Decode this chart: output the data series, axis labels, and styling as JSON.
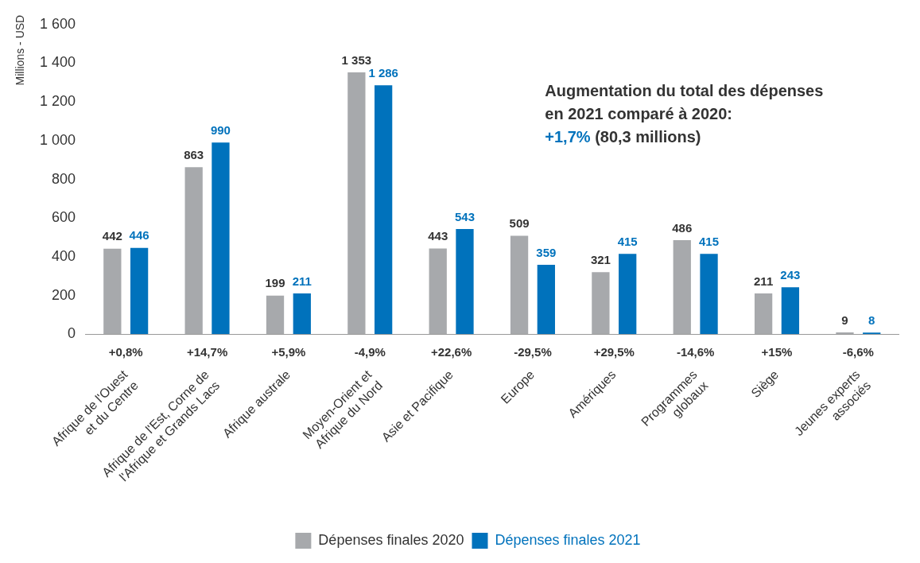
{
  "chart_data": {
    "type": "bar",
    "ylabel": "Millions - USD",
    "categories": [
      "Afrique de l'Ouest\net du Centre",
      "Afrique de l'Est, Corne de\nl'Afrique et Grands Lacs",
      "Afrique australe",
      "Moyen-Orient et\nAfrique du Nord",
      "Asie et Pacifique",
      "Europe",
      "Amériques",
      "Programmes\nglobaux",
      "Siège",
      "Jeunes experts\nassociés"
    ],
    "series": [
      {
        "name": "Dépenses finales 2020",
        "color": "#a7a9ac",
        "values": [
          442,
          863,
          199,
          1353,
          443,
          509,
          321,
          486,
          211,
          9
        ],
        "value_labels": [
          "442",
          "863",
          "199",
          "1 353",
          "443",
          "509",
          "321",
          "486",
          "211",
          "9"
        ]
      },
      {
        "name": "Dépenses finales 2021",
        "color": "#0072bc",
        "values": [
          446,
          990,
          211,
          1286,
          543,
          359,
          415,
          415,
          243,
          8
        ],
        "value_labels": [
          "446",
          "990",
          "211",
          "1 286",
          "543",
          "359",
          "415",
          "415",
          "243",
          "8"
        ]
      }
    ],
    "ylim": [
      0,
      1600
    ],
    "yticks": [
      0,
      200,
      400,
      600,
      800,
      {
        "value": 1000,
        "label": "1 000"
      },
      {
        "value": 1200,
        "label": "1 200"
      },
      {
        "value": 1400,
        "label": "1 400"
      },
      {
        "value": 1600,
        "label": "1 600"
      }
    ],
    "grid": false,
    "legend": "bottom",
    "annotations": [
      "+0,8%",
      "+14,7%",
      "+5,9%",
      "-4,9%",
      "+22,6%",
      "-29,5%",
      "+29,5%",
      "-14,6%",
      "+15%",
      "-6,6%",
      "Augmentation du total des dépenses\nen 2021 comparé à 2020:\n+1,7% (80,3 millions)"
    ]
  }
}
